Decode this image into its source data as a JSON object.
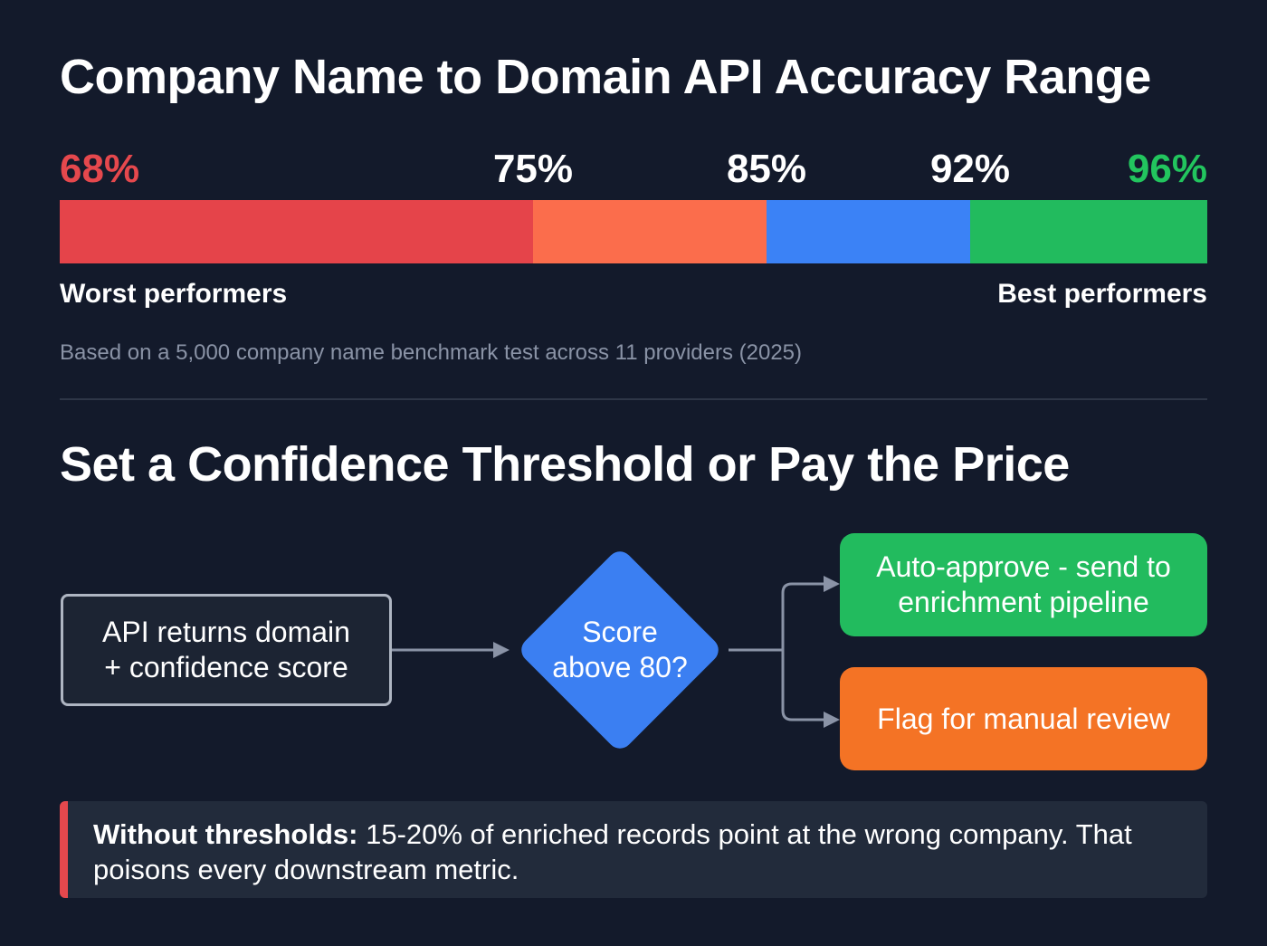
{
  "title": "Company Name to Domain API Accuracy Range",
  "range": {
    "labels": [
      {
        "text": "68%",
        "color": "#e5484d"
      },
      {
        "text": "75%",
        "color": "#ffffff"
      },
      {
        "text": "85%",
        "color": "#ffffff"
      },
      {
        "text": "92%",
        "color": "#ffffff"
      },
      {
        "text": "96%",
        "color": "#22c55e"
      }
    ],
    "segments": [
      {
        "from": 68,
        "to": 75,
        "color": "#e5444a"
      },
      {
        "from": 75,
        "to": 85,
        "color": "#fb6d4c"
      },
      {
        "from": 85,
        "to": 92,
        "color": "#3b82f6"
      },
      {
        "from": 92,
        "to": 96,
        "color": "#22bb5e"
      }
    ],
    "worst_label": "Worst performers",
    "best_label": "Best performers",
    "note": "Based on a 5,000 company name benchmark test across 11 providers (2025)"
  },
  "subtitle": "Set a Confidence Threshold or Pay the Price",
  "flow": {
    "start_line1": "API returns domain",
    "start_line2": "+ confidence score",
    "decision_line1": "Score",
    "decision_line2": "above 80?",
    "yes_line1": "Auto-approve - send to",
    "yes_line2": "enrichment pipeline",
    "no_label": "Flag for manual review"
  },
  "callout": {
    "bold": "Without thresholds:",
    "text": " 15-20% of enriched records point at the wrong company. That poisons every downstream metric."
  }
}
